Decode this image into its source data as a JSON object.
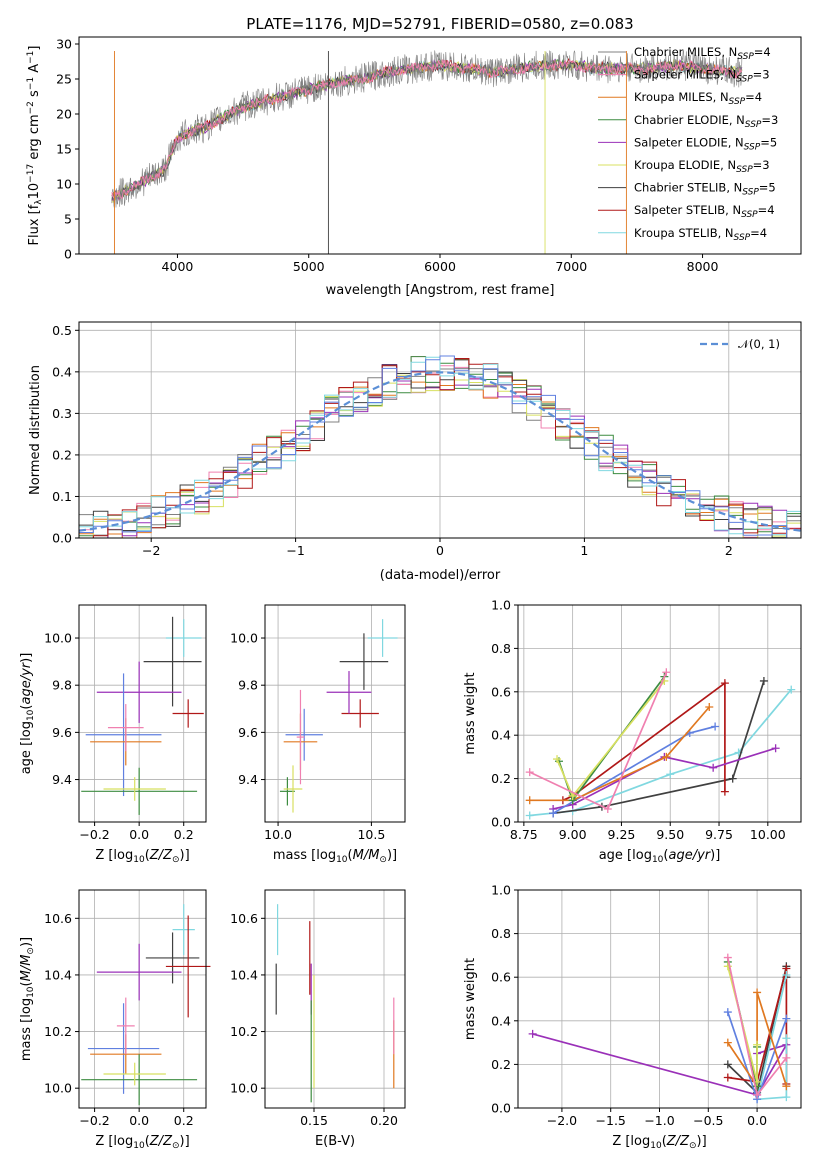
{
  "title": "PLATE=1176, MJD=52791, FIBERID=0580, z=0.083",
  "colors": {
    "Chabrier MILES": "#808080",
    "Salpeter MILES": "#f080b0",
    "Kroupa MILES": "#e07820",
    "Chabrier ELODIE": "#3d8c40",
    "Salpeter ELODIE": "#9a30b8",
    "Kroupa ELODIE": "#d8e060",
    "Chabrier STELIB": "#404040",
    "Salpeter STELIB": "#b01818",
    "Kroupa STELIB": "#80d8e0",
    "extra_blue": "#6080e0"
  },
  "chart_data": [
    {
      "type": "line",
      "title": "PLATE=1176, MJD=52791, FIBERID=0580, z=0.083",
      "xlabel": "wavelength [Angstrom, rest frame]",
      "ylabel": "Flux [f_λ 10^-17 erg cm^-2 s^-1 A^-1]",
      "xlim": [
        3250,
        8750
      ],
      "ylim": [
        0,
        31
      ],
      "xticks": [
        4000,
        5000,
        6000,
        7000,
        8000
      ],
      "yticks": [
        0,
        5,
        10,
        15,
        20,
        25,
        30
      ],
      "grid": false,
      "legend_position": "right",
      "continuum": {
        "x": [
          3500,
          3600,
          3700,
          3800,
          3900,
          4000,
          4100,
          4200,
          4300,
          4400,
          4500,
          4600,
          4700,
          4800,
          4900,
          5000,
          5200,
          5400,
          5600,
          5800,
          6000,
          6200,
          6400,
          6600,
          6800,
          7000,
          7200,
          7400,
          7600,
          7800,
          8000,
          8200,
          8300
        ],
        "y": [
          8,
          9,
          10,
          11,
          12,
          16.5,
          17.5,
          18,
          19,
          20,
          21,
          21.5,
          22,
          22.5,
          23,
          23.5,
          24.5,
          25,
          26,
          26.5,
          27,
          26.5,
          26,
          26.5,
          27,
          27,
          26.5,
          26.5,
          26.5,
          27,
          26.5,
          26,
          26
        ]
      },
      "series": [
        {
          "name": "Chabrier MILES",
          "legend_label": "Chabrier MILES, N",
          "n_ssp": "=4"
        },
        {
          "name": "Salpeter MILES",
          "legend_label": "Salpeter MILES, N",
          "n_ssp": "=3"
        },
        {
          "name": "Kroupa MILES",
          "legend_label": "Kroupa MILES, N",
          "n_ssp": "=4"
        },
        {
          "name": "Chabrier ELODIE",
          "legend_label": "Chabrier ELODIE, N",
          "n_ssp": "=3"
        },
        {
          "name": "Salpeter ELODIE",
          "legend_label": "Salpeter ELODIE, N",
          "n_ssp": "=5"
        },
        {
          "name": "Kroupa ELODIE",
          "legend_label": "Kroupa ELODIE, N",
          "n_ssp": "=3"
        },
        {
          "name": "Chabrier STELIB",
          "legend_label": "Chabrier STELIB, N",
          "n_ssp": "=5"
        },
        {
          "name": "Salpeter STELIB",
          "legend_label": "Salpeter STELIB, N",
          "n_ssp": "=4"
        },
        {
          "name": "Kroupa STELIB",
          "legend_label": "Kroupa STELIB, N",
          "n_ssp": "=4"
        }
      ],
      "legend_subscript": "SSP"
    },
    {
      "type": "line",
      "subtype": "histogram",
      "xlabel": "(data-model)/error",
      "ylabel": "Normed distribution",
      "xlim": [
        -2.5,
        2.5
      ],
      "ylim": [
        0,
        0.52
      ],
      "xticks": [
        -2,
        -1,
        0,
        1,
        2
      ],
      "xticklabels": [
        "−2",
        "−1",
        "0",
        "1",
        "2"
      ],
      "yticks": [
        0,
        0.1,
        0.2,
        0.3,
        0.4,
        0.5
      ],
      "yticklabels": [
        "0.0",
        "0.1",
        "0.2",
        "0.3",
        "0.4",
        "0.5"
      ],
      "grid": true,
      "legend_position": "top-right",
      "legend_label": "𝒩(0, 1)",
      "gaussian": {
        "mean": 0,
        "sigma": 1
      }
    },
    {
      "type": "scatter",
      "subtype": "errorbar",
      "xlabel": "Z [log10(Z/Z☉)]",
      "ylabel": "age  [log10(age/yr)]",
      "xlim": [
        -0.27,
        0.3
      ],
      "ylim": [
        9.22,
        10.14
      ],
      "xticks": [
        -0.2,
        0.0,
        0.2
      ],
      "xticklabels": [
        "−0.2",
        "0.0",
        "0.2"
      ],
      "yticks": [
        9.4,
        9.6,
        9.8,
        10.0
      ],
      "yticklabels": [
        "9.4",
        "9.6",
        "9.8",
        "10.0"
      ],
      "grid": true,
      "points": [
        {
          "series": "Kroupa STELIB",
          "x": 0.2,
          "xerr": 0.08,
          "y": 10.0,
          "yerr": 0.08
        },
        {
          "series": "Chabrier STELIB",
          "x": 0.15,
          "xerr": 0.13,
          "y": 9.9,
          "yerr": 0.19
        },
        {
          "series": "Salpeter STELIB",
          "x": 0.22,
          "xerr": 0.07,
          "y": 9.68,
          "yerr": 0.06
        },
        {
          "series": "Salpeter ELODIE",
          "x": 0.0,
          "xerr": 0.19,
          "y": 9.77,
          "yerr": 0.13
        },
        {
          "series": "extra_blue",
          "x": -0.07,
          "xerr": 0.17,
          "y": 9.59,
          "yerr": 0.26
        },
        {
          "series": "Kroupa MILES",
          "x": -0.06,
          "xerr": 0.16,
          "y": 9.56,
          "yerr": 0.1
        },
        {
          "series": "Chabrier ELODIE",
          "x": 0.0,
          "xerr": 0.26,
          "y": 9.35,
          "yerr": 0.1
        },
        {
          "series": "Kroupa ELODIE",
          "x": -0.02,
          "xerr": 0.14,
          "y": 9.36,
          "yerr": 0.05
        },
        {
          "series": "Salpeter MILES",
          "x": -0.06,
          "xerr": 0.08,
          "y": 9.62,
          "yerr": 0.1
        }
      ]
    },
    {
      "type": "scatter",
      "subtype": "errorbar",
      "xlabel": "mass [log10(M/M☉)]",
      "ylabel": "",
      "xlim": [
        9.93,
        10.68
      ],
      "ylim": [
        9.22,
        10.14
      ],
      "xticks": [
        10.0,
        10.5
      ],
      "xticklabels": [
        "10.0",
        "10.5"
      ],
      "yticks": [
        9.4,
        9.6,
        9.8,
        10.0
      ],
      "yticklabels": [
        "9.4",
        "9.6",
        "9.8",
        "10.0"
      ],
      "grid": true,
      "points": [
        {
          "series": "Kroupa STELIB",
          "x": 10.56,
          "xerr": 0.08,
          "y": 10.0,
          "yerr": 0.08
        },
        {
          "series": "Chabrier STELIB",
          "x": 10.46,
          "xerr": 0.13,
          "y": 9.9,
          "yerr": 0.12
        },
        {
          "series": "Salpeter STELIB",
          "x": 10.44,
          "xerr": 0.1,
          "y": 9.68,
          "yerr": 0.06
        },
        {
          "series": "Salpeter ELODIE",
          "x": 10.38,
          "xerr": 0.12,
          "y": 9.77,
          "yerr": 0.09
        },
        {
          "series": "extra_blue",
          "x": 10.14,
          "xerr": 0.1,
          "y": 9.59,
          "yerr": 0.11
        },
        {
          "series": "Kroupa MILES",
          "x": 10.12,
          "xerr": 0.09,
          "y": 9.56,
          "yerr": 0.12
        },
        {
          "series": "Chabrier ELODIE",
          "x": 10.05,
          "xerr": 0.04,
          "y": 9.35,
          "yerr": 0.06
        },
        {
          "series": "Kroupa ELODIE",
          "x": 10.08,
          "xerr": 0.05,
          "y": 9.36,
          "yerr": 0.1
        },
        {
          "series": "Salpeter MILES",
          "x": 10.12,
          "xerr": 0.02,
          "y": 9.58,
          "yerr": 0.2
        }
      ]
    },
    {
      "type": "line",
      "xlabel": "age  [log10(age/yr)]",
      "ylabel": "mass weight",
      "xlim": [
        8.72,
        10.17
      ],
      "ylim": [
        0,
        1
      ],
      "xticks": [
        8.75,
        9.0,
        9.25,
        9.5,
        9.75,
        10.0
      ],
      "xticklabels": [
        "8.75",
        "9.00",
        "9.25",
        "9.50",
        "9.75",
        "10.00"
      ],
      "yticks": [
        0,
        0.2,
        0.4,
        0.6,
        0.8,
        1.0
      ],
      "yticklabels": [
        "0.0",
        "0.2",
        "0.4",
        "0.6",
        "0.8",
        "1.0"
      ],
      "grid": true,
      "series": [
        {
          "name": "Kroupa STELIB",
          "x": [
            8.78,
            9.0,
            9.5,
            9.85,
            10.12
          ],
          "y": [
            0.03,
            0.05,
            0.22,
            0.32,
            0.61
          ]
        },
        {
          "name": "Chabrier STELIB",
          "x": [
            8.9,
            9.15,
            9.82,
            9.98
          ],
          "y": [
            0.04,
            0.07,
            0.2,
            0.65
          ]
        },
        {
          "name": "Salpeter STELIB",
          "x": [
            8.95,
            9.0,
            9.78,
            9.78
          ],
          "y": [
            0.1,
            0.12,
            0.64,
            0.14
          ]
        },
        {
          "name": "Salpeter ELODIE",
          "x": [
            8.9,
            9.0,
            9.47,
            9.72,
            10.04
          ],
          "y": [
            0.06,
            0.08,
            0.3,
            0.25,
            0.34
          ]
        },
        {
          "name": "extra_blue",
          "x": [
            8.9,
            9.6,
            9.73
          ],
          "y": [
            0.04,
            0.41,
            0.44
          ]
        },
        {
          "name": "Kroupa MILES",
          "x": [
            8.78,
            9.0,
            9.48,
            9.7
          ],
          "y": [
            0.1,
            0.1,
            0.3,
            0.53
          ]
        },
        {
          "name": "Chabrier ELODIE",
          "x": [
            8.93,
            9.0,
            9.47
          ],
          "y": [
            0.28,
            0.1,
            0.67
          ]
        },
        {
          "name": "Kroupa ELODIE",
          "x": [
            8.92,
            9.0,
            9.47
          ],
          "y": [
            0.29,
            0.12,
            0.65
          ]
        },
        {
          "name": "Salpeter MILES",
          "x": [
            8.78,
            9.18,
            9.48
          ],
          "y": [
            0.23,
            0.06,
            0.69
          ]
        }
      ]
    },
    {
      "type": "scatter",
      "subtype": "errorbar",
      "xlabel": "Z [log10(Z/Z☉)]",
      "ylabel": "mass [log10(M/M☉)]",
      "xlim": [
        -0.27,
        0.3
      ],
      "ylim": [
        9.93,
        10.7
      ],
      "xticks": [
        -0.2,
        0.0,
        0.2
      ],
      "xticklabels": [
        "−0.2",
        "0.0",
        "0.2"
      ],
      "yticks": [
        10.0,
        10.2,
        10.4,
        10.6
      ],
      "yticklabels": [
        "10.0",
        "10.2",
        "10.4",
        "10.6"
      ],
      "grid": true,
      "points": [
        {
          "series": "Kroupa STELIB",
          "x": 0.2,
          "xerr": 0.05,
          "y": 10.56,
          "yerr": 0.09
        },
        {
          "series": "Chabrier STELIB",
          "x": 0.15,
          "xerr": 0.12,
          "y": 10.46,
          "yerr": 0.09
        },
        {
          "series": "Salpeter STELIB",
          "x": 0.22,
          "xerr": 0.1,
          "y": 10.43,
          "yerr": 0.18
        },
        {
          "series": "Salpeter ELODIE",
          "x": 0.0,
          "xerr": 0.19,
          "y": 10.41,
          "yerr": 0.1
        },
        {
          "series": "extra_blue",
          "x": -0.07,
          "xerr": 0.16,
          "y": 10.14,
          "yerr": 0.16
        },
        {
          "series": "Kroupa MILES",
          "x": -0.06,
          "xerr": 0.16,
          "y": 10.12,
          "yerr": 0.07
        },
        {
          "series": "Chabrier ELODIE",
          "x": 0.0,
          "xerr": 0.26,
          "y": 10.03,
          "yerr": 0.09
        },
        {
          "series": "Kroupa ELODIE",
          "x": -0.02,
          "xerr": 0.14,
          "y": 10.05,
          "yerr": 0.04
        },
        {
          "series": "Salpeter MILES",
          "x": -0.06,
          "xerr": 0.04,
          "y": 10.22,
          "yerr": 0.1
        }
      ]
    },
    {
      "type": "scatter",
      "subtype": "errorbar",
      "xlabel": "E(B-V)",
      "ylabel": "",
      "xlim": [
        0.115,
        0.215
      ],
      "ylim": [
        9.93,
        10.7
      ],
      "xticks": [
        0.15,
        0.2
      ],
      "xticklabels": [
        "0.15",
        "0.20"
      ],
      "yticks": [
        10.0,
        10.2,
        10.4,
        10.6
      ],
      "yticklabels": [
        "10.0",
        "10.2",
        "10.4",
        "10.6"
      ],
      "grid": true,
      "points": [
        {
          "series": "Kroupa STELIB",
          "x": 0.124,
          "y": 10.56,
          "yerr": 0.09
        },
        {
          "series": "Chabrier STELIB",
          "x": 0.123,
          "y": 10.35,
          "yerr": 0.09
        },
        {
          "series": "Salpeter STELIB",
          "x": 0.147,
          "y": 10.46,
          "yerr": 0.13
        },
        {
          "series": "Salpeter ELODIE",
          "x": 0.148,
          "y": 10.35,
          "yerr": 0.09
        },
        {
          "series": "Chabrier ELODIE",
          "x": 0.148,
          "y": 10.13,
          "yerr": 0.18
        },
        {
          "series": "Kroupa ELODIE",
          "x": 0.15,
          "y": 10.2,
          "yerr": 0.2
        },
        {
          "series": "Kroupa MILES",
          "x": 0.207,
          "y": 10.12,
          "yerr": 0.12
        },
        {
          "series": "Salpeter MILES",
          "x": 0.207,
          "y": 10.22,
          "yerr": 0.1
        }
      ]
    },
    {
      "type": "line",
      "xlabel": "Z [log10(Z/Z☉)]",
      "ylabel": "mass weight",
      "xlim": [
        -2.45,
        0.45
      ],
      "ylim": [
        0,
        1
      ],
      "xticks": [
        -2.0,
        -1.5,
        -1.0,
        -0.5,
        0.0
      ],
      "xticklabels": [
        "−2.0",
        "−1.5",
        "−1.0",
        "−0.5",
        "0.0"
      ],
      "yticks": [
        0,
        0.2,
        0.4,
        0.6,
        0.8,
        1.0
      ],
      "yticklabels": [
        "0.0",
        "0.2",
        "0.4",
        "0.6",
        "0.8",
        "1.0"
      ],
      "grid": true,
      "series": [
        {
          "name": "Salpeter ELODIE",
          "x": [
            -2.3,
            0.0,
            0.3,
            0.0
          ],
          "y": [
            0.34,
            0.06,
            0.29,
            0.25
          ]
        },
        {
          "name": "Chabrier STELIB",
          "x": [
            -0.3,
            0.0,
            0.3,
            0.3
          ],
          "y": [
            0.2,
            0.07,
            0.65,
            0.6
          ]
        },
        {
          "name": "Salpeter STELIB",
          "x": [
            -0.3,
            0.0,
            0.3,
            0.3
          ],
          "y": [
            0.14,
            0.12,
            0.64,
            0.11
          ]
        },
        {
          "name": "Kroupa STELIB",
          "x": [
            0.3,
            0.0,
            0.3,
            0.3
          ],
          "y": [
            0.61,
            0.04,
            0.05,
            0.32
          ]
        },
        {
          "name": "extra_blue",
          "x": [
            -0.3,
            0.0,
            0.3
          ],
          "y": [
            0.44,
            0.04,
            0.41
          ]
        },
        {
          "name": "Kroupa MILES",
          "x": [
            -0.3,
            0.0,
            0.0,
            0.3
          ],
          "y": [
            0.3,
            0.1,
            0.53,
            0.1
          ]
        },
        {
          "name": "Chabrier ELODIE",
          "x": [
            -0.3,
            0.0,
            0.0
          ],
          "y": [
            0.67,
            0.1,
            0.28
          ]
        },
        {
          "name": "Kroupa ELODIE",
          "x": [
            -0.3,
            0.0,
            0.0
          ],
          "y": [
            0.65,
            0.12,
            0.29
          ]
        },
        {
          "name": "Salpeter MILES",
          "x": [
            -0.3,
            0.0,
            0.3
          ],
          "y": [
            0.69,
            0.06,
            0.23
          ]
        }
      ]
    }
  ]
}
